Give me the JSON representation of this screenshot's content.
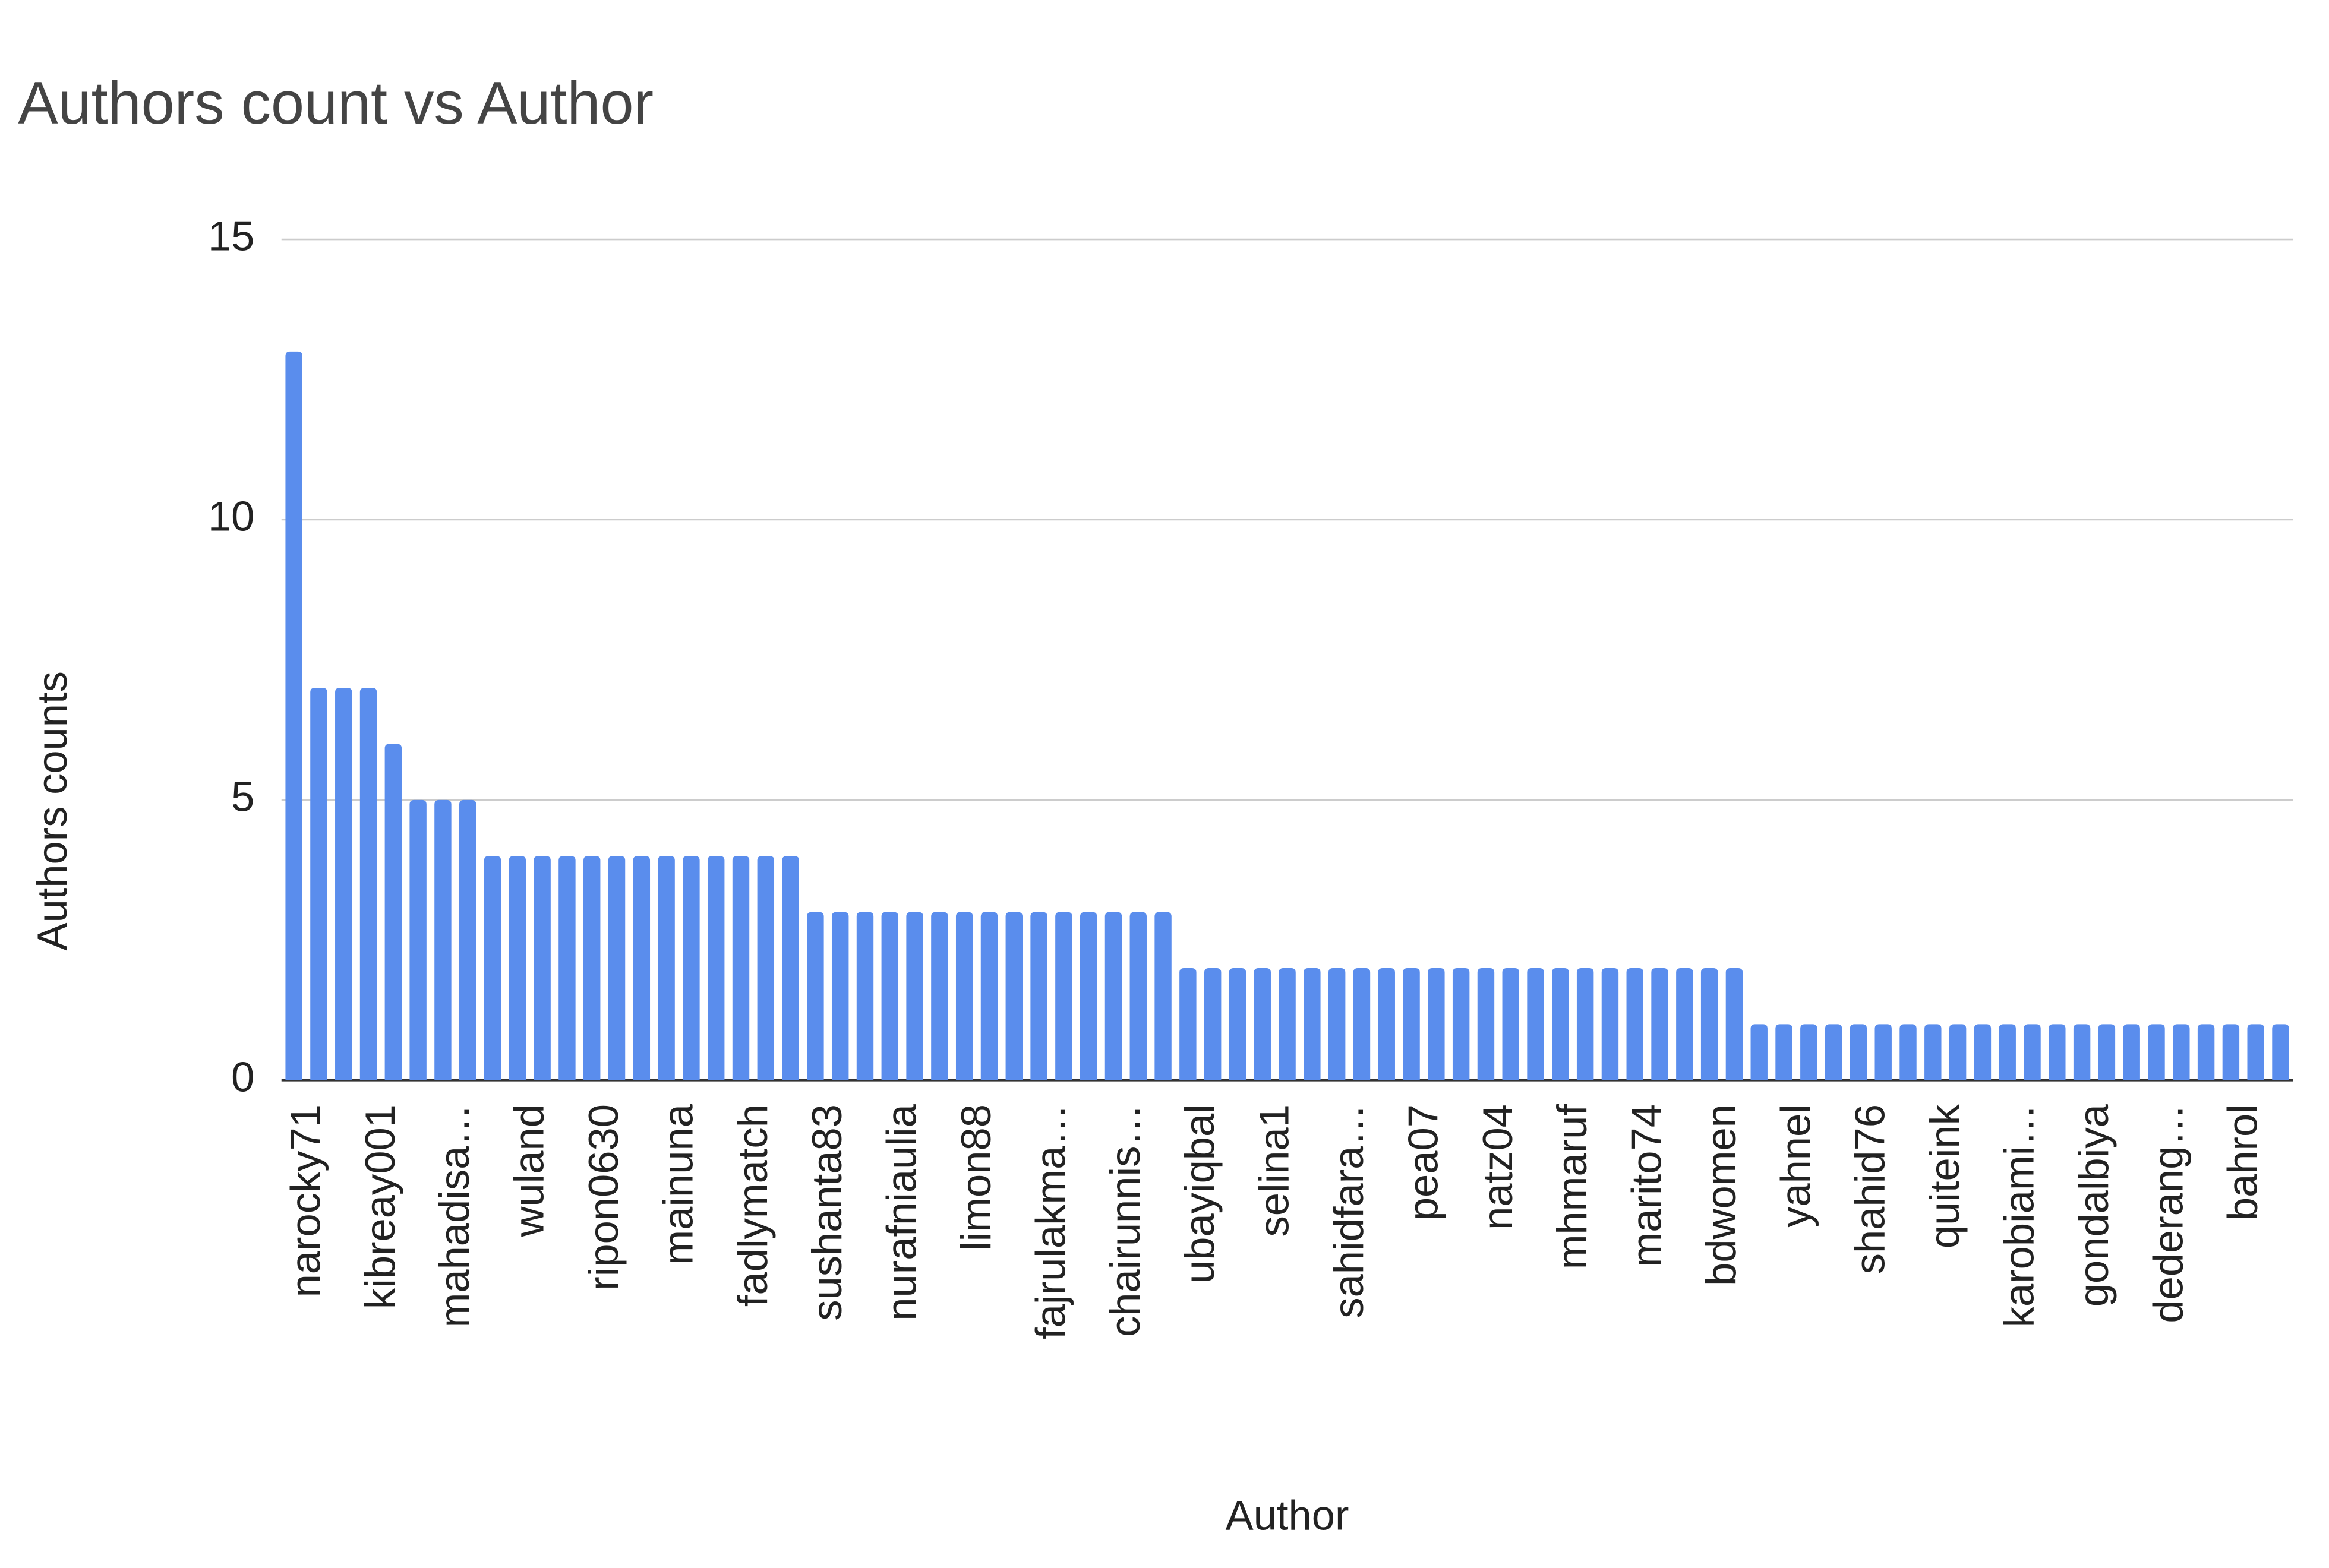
{
  "chart_data": {
    "type": "bar",
    "title": "Authors count vs Author",
    "x_label": "Author",
    "y_label": "Authors counts",
    "color": "#5a8ded",
    "grid": true,
    "ylim": [
      0,
      15
    ],
    "yticks": [
      0,
      5,
      10,
      15
    ],
    "categories": [
      "narocky71",
      null,
      null,
      "kibreay001",
      null,
      null,
      "mahadisa…",
      null,
      null,
      "wuland",
      null,
      null,
      "ripon0630",
      null,
      null,
      "mainuna",
      null,
      null,
      "fadlymatch",
      null,
      null,
      "sushanta83",
      null,
      null,
      "nurafniaulia",
      null,
      null,
      "limon88",
      null,
      null,
      "fajrulakma…",
      null,
      null,
      "chairunnis…",
      null,
      null,
      "ubayiqbal",
      null,
      null,
      "selina1",
      null,
      null,
      "sahidfara…",
      null,
      null,
      "pea07",
      null,
      null,
      "natz04",
      null,
      null,
      "mhmaruf",
      null,
      null,
      "marito74",
      null,
      null,
      "bdwomen",
      null,
      null,
      "yahnel",
      null,
      null,
      "shahid76",
      null,
      null,
      "quiteink",
      null,
      null,
      "karobiami…",
      null,
      null,
      "gondalbiya",
      null,
      null,
      "dederang…",
      null,
      null,
      "bahrol",
      null,
      null
    ],
    "values": [
      13,
      7,
      7,
      7,
      6,
      5,
      5,
      5,
      4,
      4,
      4,
      4,
      4,
      4,
      4,
      4,
      4,
      4,
      4,
      4,
      4,
      3,
      3,
      3,
      3,
      3,
      3,
      3,
      3,
      3,
      3,
      3,
      3,
      3,
      3,
      3,
      2,
      2,
      2,
      2,
      2,
      2,
      2,
      2,
      2,
      2,
      2,
      2,
      2,
      2,
      2,
      2,
      2,
      2,
      2,
      2,
      2,
      2,
      2,
      1,
      1,
      1,
      1,
      1,
      1,
      1,
      1,
      1,
      1,
      1,
      1,
      1,
      1,
      1,
      1,
      1,
      1,
      1,
      1,
      1,
      1
    ]
  }
}
